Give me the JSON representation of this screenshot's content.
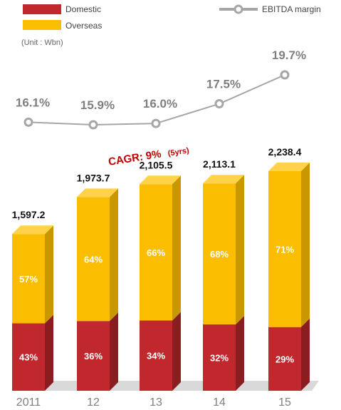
{
  "chart_data": {
    "type": "bar",
    "stacked": true,
    "categories": [
      "2011",
      "12",
      "13",
      "14",
      "15"
    ],
    "totals": [
      1597.2,
      1973.7,
      2105.5,
      2113.1,
      2238.4
    ],
    "total_labels": [
      "1,597.2",
      "1,973.7",
      "2,105.5",
      "2,113.1",
      "2,238.4"
    ],
    "series": [
      {
        "name": "Domestic",
        "color": "#c0282d",
        "shares": [
          43,
          36,
          34,
          32,
          29
        ],
        "labels": [
          "43%",
          "36%",
          "34%",
          "32%",
          "29%"
        ]
      },
      {
        "name": "Overseas",
        "color": "#fbbd00",
        "shares": [
          57,
          64,
          66,
          68,
          71
        ],
        "labels": [
          "57%",
          "64%",
          "66%",
          "68%",
          "71%"
        ]
      }
    ],
    "line_series": {
      "name": "EBITDA margin",
      "values": [
        16.1,
        15.9,
        16.0,
        17.5,
        19.7
      ],
      "labels": [
        "16.1%",
        "15.9%",
        "16.0%",
        "17.5%",
        "19.7%"
      ],
      "color": "#a6a6a6"
    },
    "unit": "(Unit : Wbn)",
    "annotation": {
      "main": "CAGR: 9%",
      "sub": "(5yrs)"
    }
  }
}
